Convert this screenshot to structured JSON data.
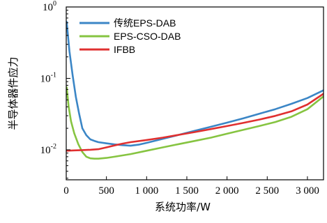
{
  "chart_data": {
    "type": "line",
    "xlabel": "系统功率/W",
    "ylabel": "半导体器件应力",
    "xlim": [
      0,
      3200
    ],
    "ylim": [
      0.0038,
      1.0
    ],
    "yscale": "log",
    "xticks": [
      0,
      500,
      1000,
      1500,
      2000,
      2500,
      3000
    ],
    "xtick_labels": [
      "0",
      "500",
      "1 000",
      "1 500",
      "2 000",
      "2 500",
      "3 000"
    ],
    "yticks": [
      0.01,
      0.1,
      1
    ],
    "ytick_labels": [
      {
        "base": "10",
        "exp": "-2"
      },
      {
        "base": "10",
        "exp": "-1"
      },
      {
        "base": "10",
        "exp": "0"
      }
    ],
    "legend_position": "top-left",
    "grid": false,
    "series": [
      {
        "name": "传统EPS-DAB",
        "color": "#3b86c6",
        "x": [
          5,
          40,
          80,
          120,
          160,
          200,
          250,
          300,
          350,
          400,
          500,
          600,
          700,
          800,
          900,
          1000,
          1200,
          1400,
          1600,
          1800,
          2000,
          2200,
          2400,
          2600,
          2800,
          3000,
          3200
        ],
        "y": [
          0.62,
          0.24,
          0.11,
          0.055,
          0.032,
          0.02,
          0.016,
          0.014,
          0.0133,
          0.0128,
          0.0123,
          0.0119,
          0.0116,
          0.0114,
          0.0118,
          0.0125,
          0.0142,
          0.0162,
          0.0185,
          0.021,
          0.024,
          0.0275,
          0.032,
          0.037,
          0.044,
          0.053,
          0.068
        ]
      },
      {
        "name": "EPS-CSO-DAB",
        "color": "#86c441",
        "x": [
          5,
          30,
          60,
          100,
          150,
          200,
          250,
          300,
          350,
          400,
          500,
          600,
          800,
          1000,
          1200,
          1400,
          1600,
          1800,
          2000,
          2200,
          2400,
          2600,
          2800,
          3000,
          3200
        ],
        "y": [
          0.075,
          0.04,
          0.025,
          0.017,
          0.012,
          0.0093,
          0.008,
          0.0076,
          0.0075,
          0.0075,
          0.0077,
          0.008,
          0.0087,
          0.0097,
          0.0108,
          0.012,
          0.0133,
          0.0148,
          0.0168,
          0.019,
          0.0215,
          0.0245,
          0.029,
          0.037,
          0.056
        ]
      },
      {
        "name": "IFBB",
        "color": "#e03030",
        "x": [
          0,
          100,
          200,
          300,
          400,
          500,
          600,
          700,
          800,
          1000,
          1200,
          1400,
          1600,
          1800,
          2000,
          2200,
          2400,
          2600,
          2800,
          3000,
          3200
        ],
        "y": [
          0.0097,
          0.0098,
          0.0099,
          0.01,
          0.0102,
          0.0108,
          0.0115,
          0.0122,
          0.0128,
          0.0137,
          0.0148,
          0.0162,
          0.0177,
          0.0195,
          0.0215,
          0.0238,
          0.0265,
          0.0298,
          0.0345,
          0.043,
          0.061
        ]
      }
    ]
  }
}
